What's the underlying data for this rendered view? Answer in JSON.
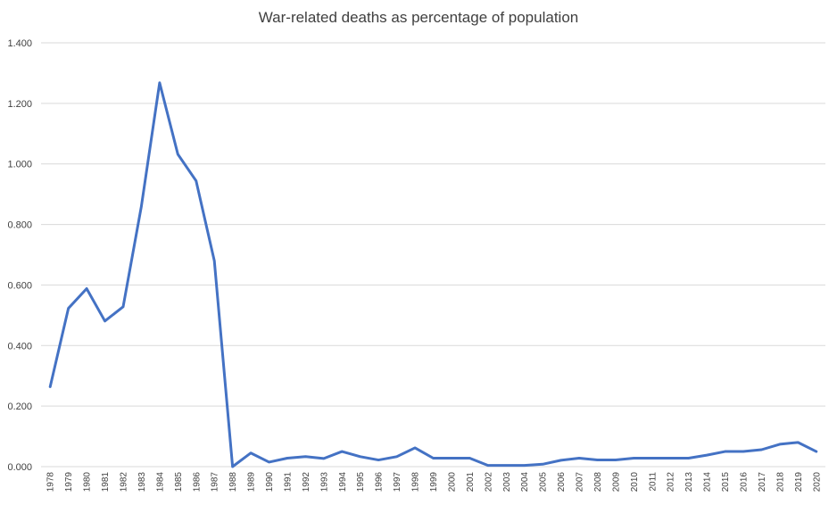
{
  "chart_data": {
    "type": "line",
    "title": "War-related deaths as percentage of population",
    "xlabel": "",
    "ylabel": "",
    "ylim": [
      0,
      1.4
    ],
    "yticks": [
      "0.000",
      "0.200",
      "0.400",
      "0.600",
      "0.800",
      "1.000",
      "1.200",
      "1.400"
    ],
    "grid": true,
    "legend": "none",
    "line_color": "#4472C4",
    "categories": [
      "1978",
      "1979",
      "1980",
      "1981",
      "1982",
      "1983",
      "1984",
      "1985",
      "1986",
      "1987",
      "1988",
      "1989",
      "1990",
      "1991",
      "1992",
      "1993",
      "1994",
      "1995",
      "1996",
      "1997",
      "1998",
      "1999",
      "2000",
      "2001",
      "2002",
      "2003",
      "2004",
      "2005",
      "2006",
      "2007",
      "2008",
      "2009",
      "2010",
      "2011",
      "2012",
      "2013",
      "2014",
      "2015",
      "2016",
      "2017",
      "2018",
      "2019",
      "2020"
    ],
    "series": [
      {
        "values": [
          0.264,
          0.523,
          0.588,
          0.481,
          0.528,
          0.86,
          1.268,
          1.032,
          0.944,
          0.68,
          0.0,
          0.045,
          0.015,
          0.028,
          0.033,
          0.027,
          0.05,
          0.033,
          0.022,
          0.033,
          0.062,
          0.028,
          0.028,
          0.028,
          0.004,
          0.004,
          0.004,
          0.008,
          0.021,
          0.028,
          0.022,
          0.022,
          0.028,
          0.028,
          0.028,
          0.028,
          0.038,
          0.05,
          0.05,
          0.056,
          0.074,
          0.08,
          0.05
        ]
      }
    ]
  }
}
